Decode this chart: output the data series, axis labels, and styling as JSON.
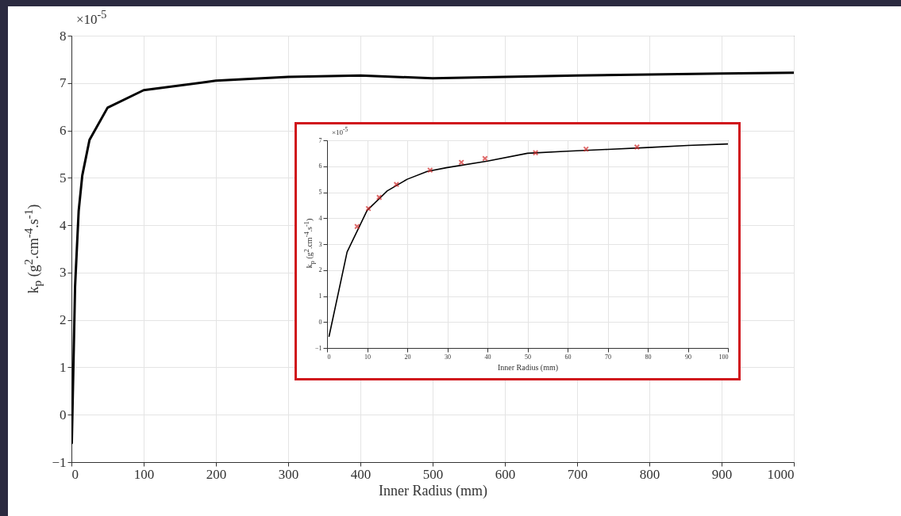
{
  "chart_data": [
    {
      "type": "line",
      "xlabel": "Inner Radius (mm)",
      "ylabel": "k$_{p}$ (g$^{2}$.cm$^{-4}$.s$^{-1}$)",
      "annotations": [
        "×10$^{-5}$"
      ],
      "x": [
        0.5,
        5,
        10,
        15,
        25,
        50,
        100,
        200,
        300,
        400,
        500,
        600,
        700,
        800,
        900,
        1000
      ],
      "series": [
        {
          "color": "#000000",
          "values": [
            -0.6,
            2.7,
            4.3,
            5.05,
            5.8,
            6.48,
            6.85,
            7.05,
            7.13,
            7.16,
            7.1,
            7.13,
            7.16,
            7.18,
            7.2,
            7.22
          ]
        }
      ],
      "xlim": [
        0,
        1000
      ],
      "xticks": [
        0,
        100,
        200,
        300,
        400,
        500,
        600,
        700,
        800,
        900,
        1000
      ],
      "ylim": [
        -1,
        8
      ],
      "yticks": [
        -1,
        0,
        1,
        2,
        3,
        4,
        5,
        6,
        7,
        8
      ],
      "grid": true,
      "line_style": "solid"
    },
    {
      "type": "line",
      "xlabel": "Inner Radius (mm)",
      "ylabel": "k$_{p}$ (g$^{2}$.cm$^{-4}$.s$^{-1}$)",
      "annotations": [
        "×10$^{-5}$"
      ],
      "series": [
        {
          "color": "#000000",
          "x": [
            0.5,
            5,
            10,
            15,
            20,
            25,
            30,
            40,
            50,
            60,
            70,
            80,
            90,
            100
          ],
          "values": [
            -0.55,
            2.7,
            4.3,
            5.05,
            5.5,
            5.8,
            5.95,
            6.2,
            6.5,
            6.58,
            6.65,
            6.72,
            6.8,
            6.86
          ]
        },
        {
          "type": "scatter",
          "color": "#d02a2a",
          "marker": "cross",
          "x": [
            7.5,
            10.3,
            13,
            17.3,
            25.7,
            33.5,
            39.4,
            52,
            64.6,
            77.3
          ],
          "values": [
            3.68,
            4.37,
            4.8,
            5.3,
            5.85,
            6.15,
            6.3,
            6.52,
            6.66,
            6.74
          ]
        }
      ],
      "xlim": [
        0,
        100
      ],
      "xticks": [
        0,
        10,
        20,
        30,
        40,
        50,
        60,
        70,
        80,
        90,
        100
      ],
      "ylim": [
        -1,
        7
      ],
      "yticks": [
        -1,
        0,
        1,
        2,
        3,
        4,
        5,
        6,
        7
      ],
      "grid": true,
      "line_style": "solid"
    }
  ]
}
